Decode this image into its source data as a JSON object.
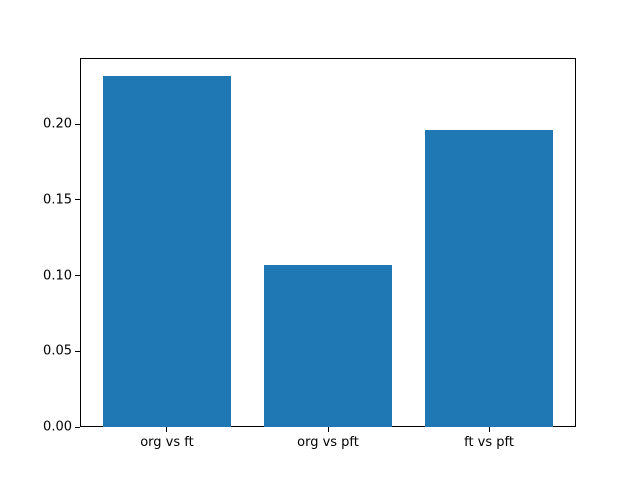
{
  "chart_data": {
    "type": "bar",
    "title": "",
    "xlabel": "",
    "ylabel": "",
    "categories": [
      "org vs ft",
      "org vs pft",
      "ft vs pft"
    ],
    "values": [
      0.232,
      0.107,
      0.196
    ],
    "yticks": [
      {
        "value": 0.0,
        "label": "0.00"
      },
      {
        "value": 0.05,
        "label": "0.05"
      },
      {
        "value": 0.1,
        "label": "0.10"
      },
      {
        "value": 0.15,
        "label": "0.15"
      },
      {
        "value": 0.2,
        "label": "0.20"
      }
    ],
    "ylim": [
      0,
      0.2437
    ],
    "xlim": [
      -0.54,
      2.54
    ],
    "bar_width": 0.8,
    "grid": false,
    "legend": null,
    "colors": {
      "bar": "#1f77b4",
      "spine": "#000000",
      "background": "#ffffff",
      "tick_text": "#000000"
    }
  }
}
